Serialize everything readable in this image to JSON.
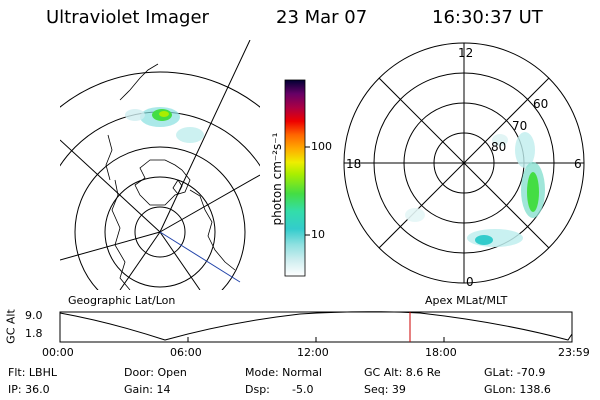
{
  "header": {
    "instrument": "Ultraviolet Imager",
    "date": "23 Mar 07",
    "time": "16:30:37 UT"
  },
  "colorbar": {
    "unit_label": "photon cm⁻²s⁻¹",
    "ticks": [
      "100",
      "10"
    ],
    "scale": "log"
  },
  "polar_plot": {
    "mlt_labels": [
      "12",
      "18",
      "6",
      "0"
    ],
    "lat_labels": [
      "60",
      "70",
      "80"
    ]
  },
  "labels": {
    "geographic": "Geographic Lat/Lon",
    "apex": "Apex MLat/MLT"
  },
  "altitude_plot": {
    "ylabel": "GC Alt",
    "ymax": "9.0",
    "ymin": "1.8",
    "time_ticks": [
      "00:00",
      "06:00",
      "12:00",
      "18:00",
      "23:59"
    ],
    "marker_time": "16:30",
    "marker_color": "#cc0000"
  },
  "info": {
    "flt": "Flt: LBHL",
    "ip": "IP: 36.0",
    "door": "Door: Open",
    "gain": "Gain: 14",
    "mode": "Mode: Normal",
    "dsp_label": "Dsp:",
    "dsp_value": "-5.0",
    "gcalt": "GC Alt: 8.6 Re",
    "seq": "Seq: 39",
    "glat": "GLat: -70.9",
    "glon": "GLon: 138.6"
  }
}
